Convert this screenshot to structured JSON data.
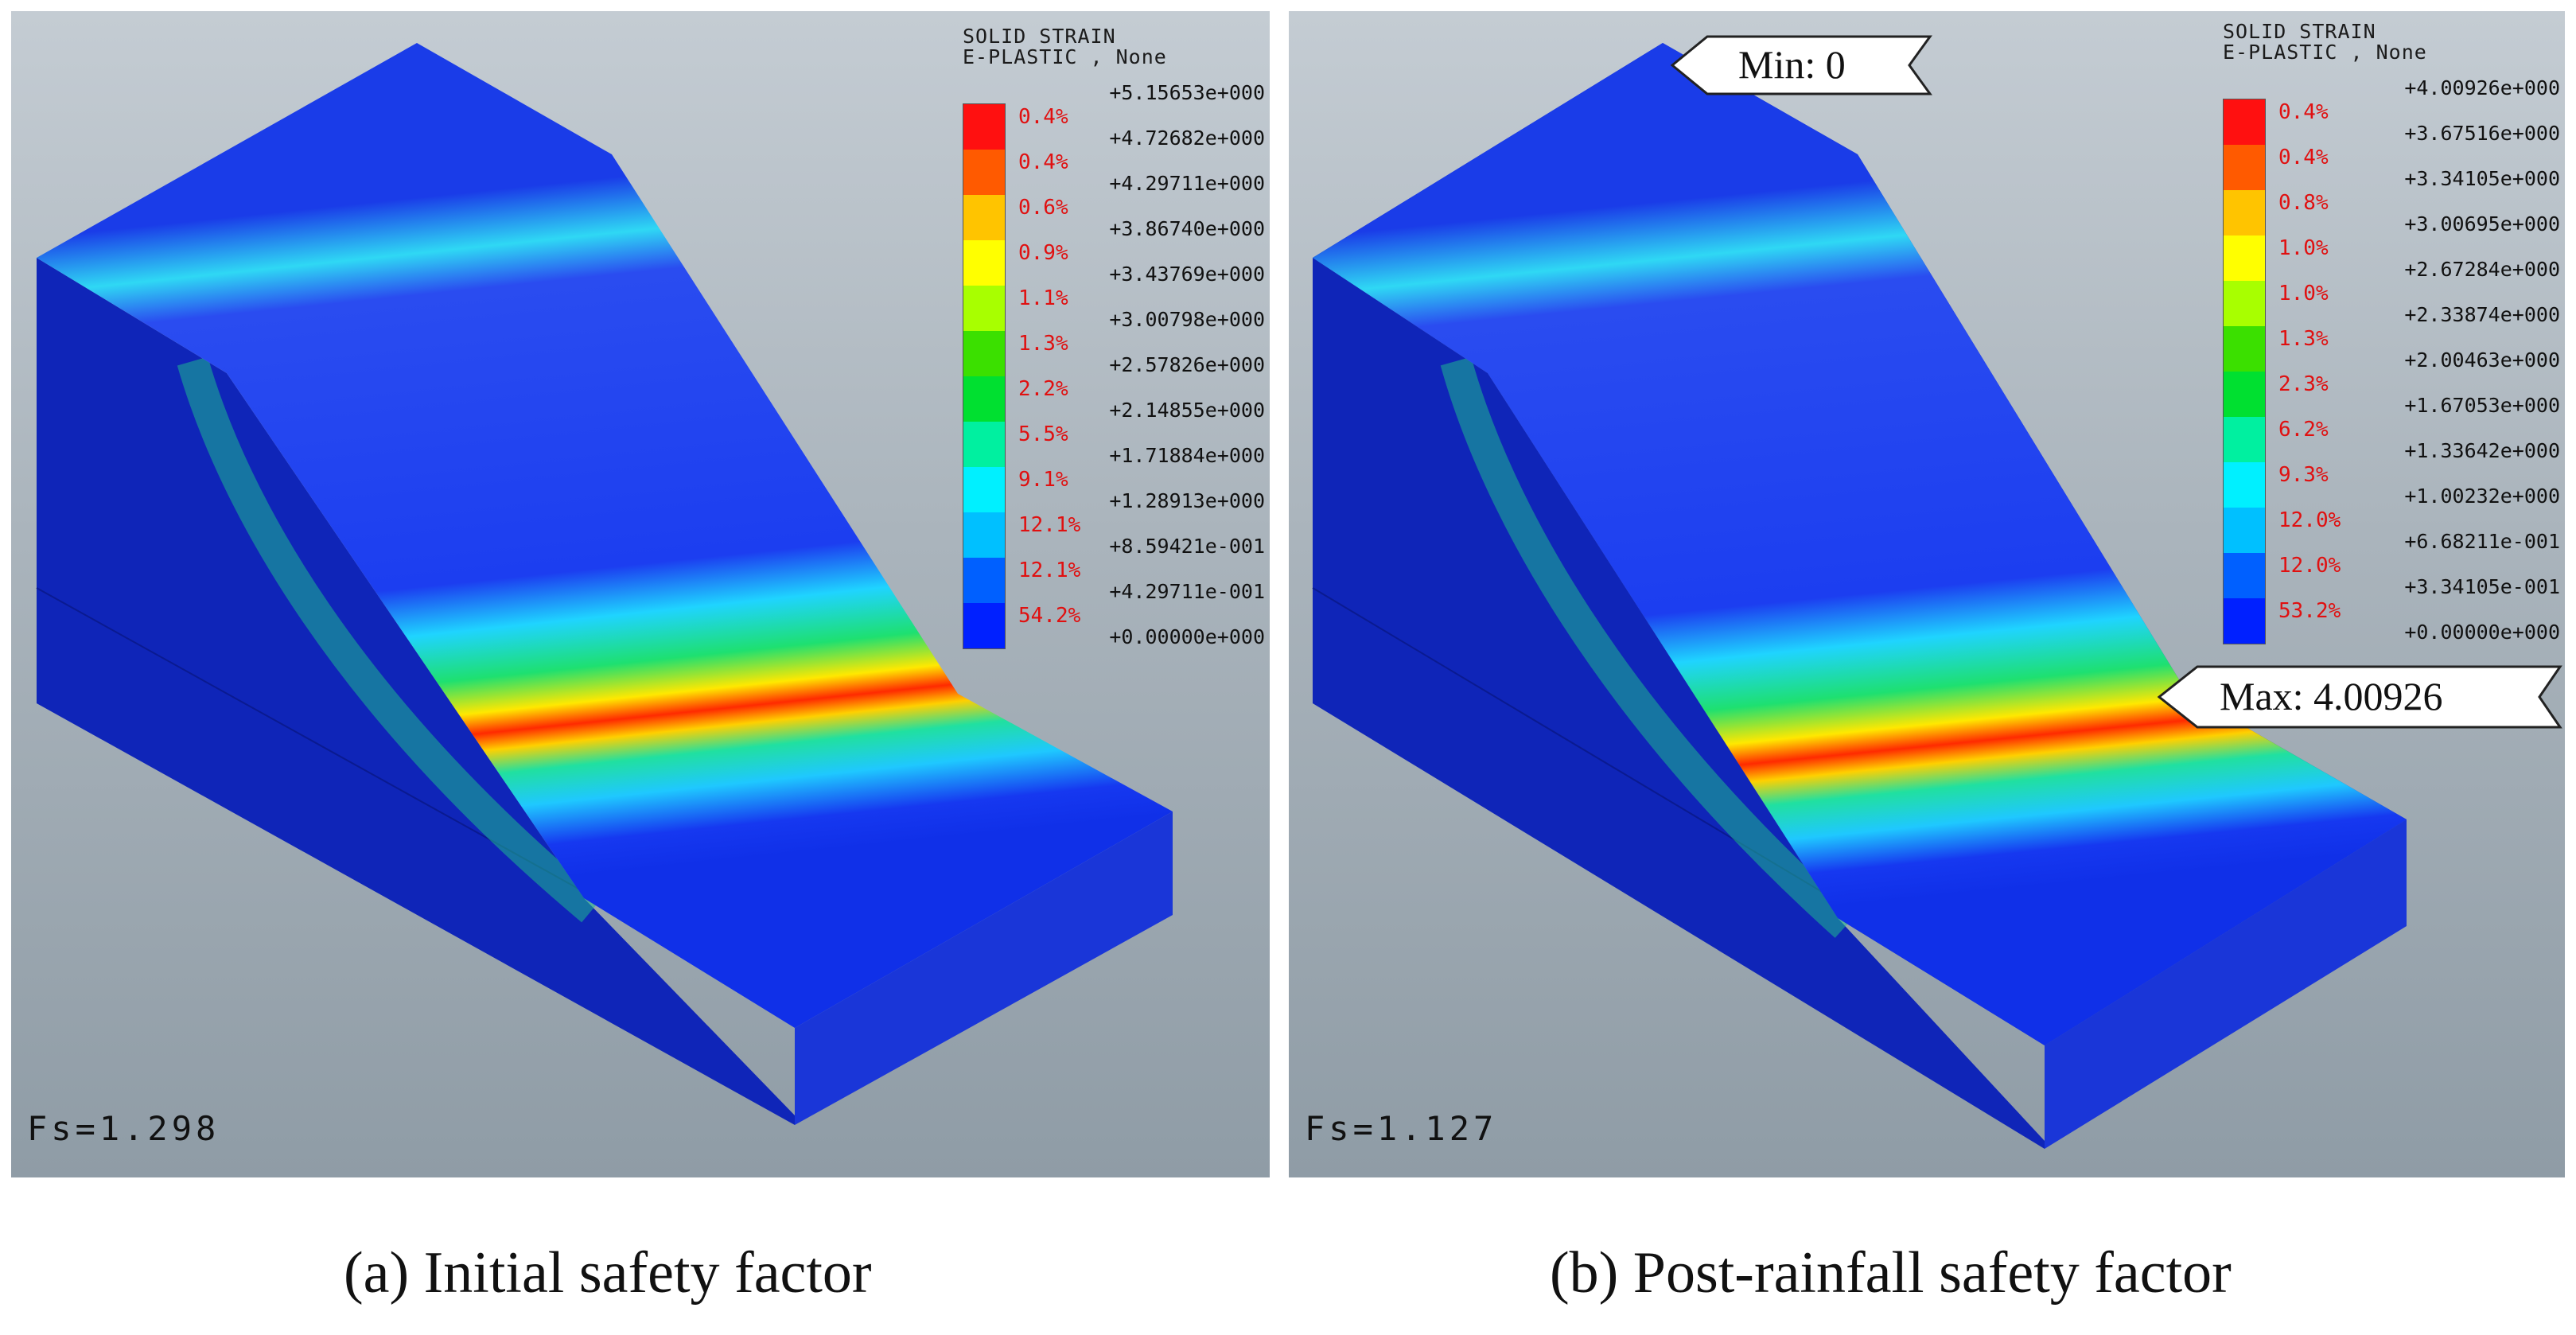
{
  "legend_colors": [
    "#ff1010",
    "#ff5a00",
    "#ffc400",
    "#ffff00",
    "#a8ff00",
    "#3be000",
    "#00e030",
    "#00f0a0",
    "#00f0ff",
    "#00c0ff",
    "#0060ff",
    "#0020ff"
  ],
  "panels": [
    {
      "legend": {
        "title_line1": "SOLID STRAIN",
        "title_line2": "E-PLASTIC , None",
        "ticks": [
          "+5.15653e+000",
          "+4.72682e+000",
          "+4.29711e+000",
          "+3.86740e+000",
          "+3.43769e+000",
          "+3.00798e+000",
          "+2.57826e+000",
          "+2.14855e+000",
          "+1.71884e+000",
          "+1.28913e+000",
          "+8.59421e-001",
          "+4.29711e-001",
          "+0.00000e+000"
        ],
        "percents": [
          "0.4%",
          "0.4%",
          "0.6%",
          "0.9%",
          "1.1%",
          "1.3%",
          "2.2%",
          "5.5%",
          "9.1%",
          "12.1%",
          "12.1%",
          "54.2%"
        ]
      },
      "fs": "Fs=1.298",
      "caption": "(a) Initial safety factor"
    },
    {
      "legend": {
        "title_line1": "SOLID STRAIN",
        "title_line2": "E-PLASTIC , None",
        "ticks": [
          "+4.00926e+000",
          "+3.67516e+000",
          "+3.34105e+000",
          "+3.00695e+000",
          "+2.67284e+000",
          "+2.33874e+000",
          "+2.00463e+000",
          "+1.67053e+000",
          "+1.33642e+000",
          "+1.00232e+000",
          "+6.68211e-001",
          "+3.34105e-001",
          "+0.00000e+000"
        ],
        "percents": [
          "0.4%",
          "0.4%",
          "0.8%",
          "1.0%",
          "1.0%",
          "1.3%",
          "2.3%",
          "6.2%",
          "9.3%",
          "12.0%",
          "12.0%",
          "53.2%"
        ]
      },
      "fs": "Fs=1.127",
      "min_label": "Min:  0",
      "max_label": "Max:  4.00926",
      "caption": "(b) Post-rainfall safety factor"
    }
  ]
}
